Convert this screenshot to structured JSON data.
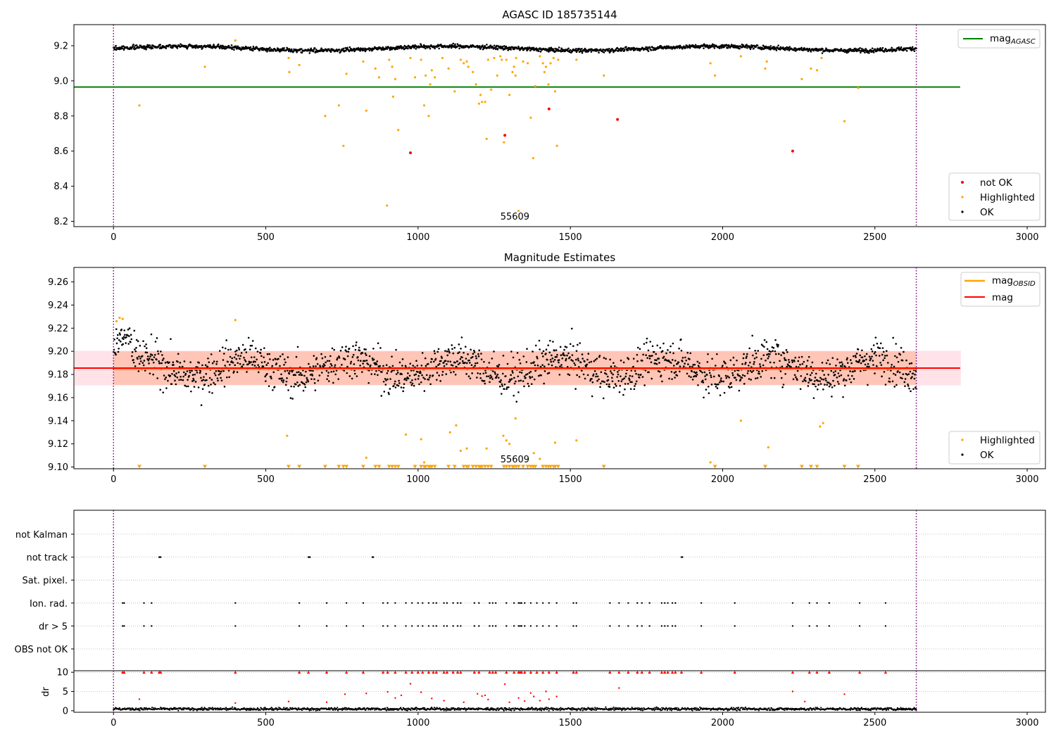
{
  "figure": {
    "colors": {
      "ok": "#000000",
      "highlighted": "#ffa500",
      "not_ok": "#ff0000",
      "mag_agasc_line": "#008000",
      "mag_obsid_line": "#ffa500",
      "mag_line": "#ff0000",
      "obs_band": "#ffa07a",
      "mag_band": "#ffc0cb",
      "boundary": "#800080",
      "grid": "#b0b0b0"
    }
  },
  "chart_data": [
    {
      "type": "scatter",
      "title": "AGASC ID 185735144",
      "xlim": [
        -130,
        3060
      ],
      "ylim": [
        8.17,
        9.32
      ],
      "xticks": [
        "0",
        "500",
        "1000",
        "1500",
        "2000",
        "2500",
        "3000"
      ],
      "yticks": [
        "8.2",
        "8.4",
        "8.6",
        "8.8",
        "9.0",
        "9.2"
      ],
      "obs_boundaries": [
        0,
        2636
      ],
      "obsid_annotation": {
        "text": "55609",
        "x": 1318
      },
      "reference_line": {
        "name": "mag_AGASC",
        "y": 8.965,
        "x_range": [
          -130,
          2780
        ]
      },
      "ok_series": {
        "name": "OK",
        "x_range": [
          0,
          2636
        ],
        "count": 1700,
        "mean": 9.185,
        "band": 0.025
      },
      "highlighted": {
        "name": "Highlighted",
        "points": [
          [
            85,
            8.86
          ],
          [
            300,
            9.08
          ],
          [
            400,
            9.23
          ],
          [
            575,
            9.13
          ],
          [
            577,
            9.05
          ],
          [
            610,
            9.09
          ],
          [
            695,
            8.8
          ],
          [
            740,
            8.86
          ],
          [
            755,
            8.63
          ],
          [
            765,
            9.04
          ],
          [
            820,
            9.11
          ],
          [
            830,
            8.83
          ],
          [
            860,
            9.07
          ],
          [
            872,
            9.02
          ],
          [
            898,
            8.29
          ],
          [
            905,
            9.12
          ],
          [
            915,
            9.08
          ],
          [
            918,
            8.91
          ],
          [
            925,
            9.01
          ],
          [
            935,
            8.72
          ],
          [
            975,
            9.13
          ],
          [
            990,
            9.02
          ],
          [
            1010,
            9.12
          ],
          [
            1020,
            8.86
          ],
          [
            1025,
            9.03
          ],
          [
            1035,
            8.8
          ],
          [
            1040,
            8.98
          ],
          [
            1045,
            9.06
          ],
          [
            1055,
            9.02
          ],
          [
            1080,
            9.13
          ],
          [
            1100,
            9.07
          ],
          [
            1120,
            8.94
          ],
          [
            1140,
            9.12
          ],
          [
            1150,
            9.1
          ],
          [
            1160,
            9.11
          ],
          [
            1165,
            9.08
          ],
          [
            1180,
            9.05
          ],
          [
            1190,
            8.98
          ],
          [
            1200,
            8.87
          ],
          [
            1205,
            8.92
          ],
          [
            1210,
            8.88
          ],
          [
            1220,
            8.88
          ],
          [
            1225,
            8.67
          ],
          [
            1230,
            9.12
          ],
          [
            1240,
            8.95
          ],
          [
            1250,
            9.13
          ],
          [
            1260,
            9.03
          ],
          [
            1270,
            9.14
          ],
          [
            1275,
            9.12
          ],
          [
            1282,
            8.65
          ],
          [
            1290,
            9.12
          ],
          [
            1300,
            8.92
          ],
          [
            1310,
            9.05
          ],
          [
            1315,
            9.08
          ],
          [
            1320,
            9.03
          ],
          [
            1322,
            9.13
          ],
          [
            1330,
            8.26
          ],
          [
            1345,
            9.11
          ],
          [
            1360,
            9.1
          ],
          [
            1370,
            8.79
          ],
          [
            1378,
            8.56
          ],
          [
            1385,
            8.97
          ],
          [
            1400,
            9.14
          ],
          [
            1410,
            9.1
          ],
          [
            1415,
            9.05
          ],
          [
            1420,
            9.08
          ],
          [
            1428,
            8.98
          ],
          [
            1435,
            9.1
          ],
          [
            1445,
            9.13
          ],
          [
            1450,
            8.94
          ],
          [
            1456,
            8.63
          ],
          [
            1460,
            9.12
          ],
          [
            1520,
            9.12
          ],
          [
            1610,
            9.03
          ],
          [
            1960,
            9.1
          ],
          [
            1975,
            9.03
          ],
          [
            2060,
            9.14
          ],
          [
            2140,
            9.07
          ],
          [
            2145,
            9.11
          ],
          [
            2260,
            9.01
          ],
          [
            2290,
            9.07
          ],
          [
            2310,
            9.06
          ],
          [
            2325,
            9.13
          ],
          [
            2400,
            8.77
          ],
          [
            2445,
            8.96
          ]
        ]
      },
      "not_ok": {
        "name": "not OK",
        "points": [
          [
            975,
            8.59
          ],
          [
            1285,
            8.69
          ],
          [
            1430,
            8.84
          ],
          [
            1655,
            8.78
          ],
          [
            2230,
            8.6
          ]
        ]
      },
      "legend_upper": {
        "entries": [
          "mag_AGASC"
        ],
        "position": "upper right"
      },
      "legend_lower": {
        "entries": [
          "not OK",
          "Highlighted",
          "OK"
        ],
        "position": "lower right"
      }
    },
    {
      "type": "scatter",
      "title": "Magnitude Estimates",
      "xlim": [
        -130,
        3060
      ],
      "ylim": [
        9.0985,
        9.2725
      ],
      "xticks": [
        "0",
        "500",
        "1000",
        "1500",
        "2000",
        "2500",
        "3000"
      ],
      "yticks": [
        "9.10",
        "9.12",
        "9.14",
        "9.16",
        "9.18",
        "9.20",
        "9.22",
        "9.24",
        "9.26"
      ],
      "obs_boundaries": [
        0,
        2636
      ],
      "obsid_annotation": {
        "text": "55609",
        "x": 1318
      },
      "mag_obsid": {
        "name": "mag_OBSID",
        "y": 9.1845,
        "band": [
          9.171,
          9.2
        ],
        "x_range": [
          0,
          2636
        ]
      },
      "mag": {
        "name": "mag",
        "y": 9.1855,
        "band": [
          9.1705,
          9.2005
        ],
        "x_range": [
          -130,
          2780
        ]
      },
      "ok_series": {
        "name": "OK",
        "x_range": [
          0,
          2636
        ],
        "count": 1700,
        "mean": 9.186,
        "scatter_sd": 0.012
      },
      "highlighted": {
        "name": "Highlighted",
        "points": [
          [
            20,
            9.229
          ],
          [
            30,
            9.228
          ],
          [
            10,
            9.226
          ],
          [
            400,
            9.227
          ],
          [
            570,
            9.127
          ],
          [
            830,
            9.108
          ],
          [
            960,
            9.128
          ],
          [
            1010,
            9.124
          ],
          [
            1020,
            9.104
          ],
          [
            1105,
            9.13
          ],
          [
            1125,
            9.136
          ],
          [
            1140,
            9.114
          ],
          [
            1160,
            9.116
          ],
          [
            1225,
            9.116
          ],
          [
            1280,
            9.127
          ],
          [
            1290,
            9.123
          ],
          [
            1300,
            9.12
          ],
          [
            1320,
            9.142
          ],
          [
            1380,
            9.112
          ],
          [
            1400,
            9.107
          ],
          [
            1450,
            9.121
          ],
          [
            1520,
            9.123
          ],
          [
            1960,
            9.104
          ],
          [
            2060,
            9.14
          ],
          [
            2150,
            9.117
          ],
          [
            2320,
            9.135
          ],
          [
            2330,
            9.138
          ]
        ],
        "below_axis_x": [
          85,
          300,
          575,
          610,
          695,
          740,
          755,
          765,
          820,
          860,
          872,
          905,
          915,
          925,
          935,
          990,
          1010,
          1020,
          1025,
          1035,
          1040,
          1045,
          1055,
          1100,
          1120,
          1150,
          1160,
          1165,
          1180,
          1190,
          1200,
          1205,
          1210,
          1220,
          1230,
          1240,
          1282,
          1290,
          1300,
          1310,
          1315,
          1322,
          1330,
          1345,
          1360,
          1370,
          1378,
          1385,
          1410,
          1420,
          1428,
          1435,
          1445,
          1450,
          1460,
          1610,
          1975,
          2140,
          2260,
          2290,
          2310,
          2400,
          2445
        ]
      },
      "legend_upper": {
        "entries": [
          "mag_OBSID",
          "mag"
        ],
        "position": "upper right"
      },
      "legend_lower": {
        "entries": [
          "Highlighted",
          "OK"
        ],
        "position": "lower right"
      }
    },
    {
      "type": "scatter",
      "title": "",
      "xlim": [
        -130,
        3060
      ],
      "xticks": [
        "0",
        "500",
        "1000",
        "1500",
        "2000",
        "2500",
        "3000"
      ],
      "flag_labels": [
        "not Kalman",
        "not track",
        "Sat. pixel.",
        "Ion. rad.",
        "dr > 5",
        "OBS not OK"
      ],
      "obs_boundaries": [
        0,
        2636
      ],
      "flags": {
        "not track": [
          150,
          152,
          155,
          640,
          642,
          645,
          850,
          853,
          1865,
          1868
        ],
        "Ion. rad.": [
          30,
          35,
          100,
          125,
          400,
          610,
          700,
          765,
          820,
          885,
          900,
          925,
          960,
          980,
          1000,
          1015,
          1035,
          1050,
          1060,
          1085,
          1095,
          1115,
          1130,
          1140,
          1185,
          1200,
          1235,
          1245,
          1255,
          1290,
          1315,
          1330,
          1335,
          1340,
          1350,
          1370,
          1390,
          1410,
          1430,
          1455,
          1510,
          1520,
          1630,
          1660,
          1690,
          1720,
          1735,
          1760,
          1800,
          1810,
          1820,
          1835,
          1845,
          1930,
          2040,
          2230,
          2285,
          2310,
          2350,
          2450,
          2535
        ],
        "dr > 5": [
          30,
          35,
          100,
          125,
          400,
          610,
          700,
          765,
          820,
          885,
          900,
          925,
          960,
          980,
          1000,
          1015,
          1035,
          1050,
          1060,
          1085,
          1095,
          1115,
          1130,
          1140,
          1185,
          1200,
          1235,
          1245,
          1255,
          1290,
          1315,
          1330,
          1335,
          1340,
          1350,
          1370,
          1390,
          1410,
          1430,
          1455,
          1510,
          1520,
          1630,
          1660,
          1690,
          1720,
          1735,
          1760,
          1800,
          1810,
          1820,
          1835,
          1845,
          1930,
          2040,
          2230,
          2285,
          2310,
          2350,
          2450,
          2535
        ]
      }
    },
    {
      "type": "scatter",
      "title": "",
      "ylabel": "dr",
      "xlim": [
        -130,
        3060
      ],
      "ylim": [
        -0.4,
        10.4
      ],
      "xticks": [
        "0",
        "500",
        "1000",
        "1500",
        "2000",
        "2500",
        "3000"
      ],
      "yticks": [
        "0",
        "5",
        "10"
      ],
      "obs_boundaries": [
        0,
        2636
      ],
      "ok_series": {
        "name": "OK",
        "x_range": [
          0,
          2636
        ],
        "count": 1500,
        "typical": 0.45
      },
      "outliers": [
        [
          85,
          3
        ],
        [
          400,
          2
        ],
        [
          575,
          2.4
        ],
        [
          700,
          2.2
        ],
        [
          760,
          4.3
        ],
        [
          830,
          4.5
        ],
        [
          900,
          4.9
        ],
        [
          925,
          3.3
        ],
        [
          945,
          4
        ],
        [
          975,
          7
        ],
        [
          1010,
          4.8
        ],
        [
          1045,
          3.2
        ],
        [
          1085,
          2.6
        ],
        [
          1150,
          2.2
        ],
        [
          1195,
          4.4
        ],
        [
          1210,
          3.8
        ],
        [
          1220,
          4
        ],
        [
          1230,
          2.9
        ],
        [
          1285,
          6.9
        ],
        [
          1300,
          2.2
        ],
        [
          1330,
          3.3
        ],
        [
          1350,
          2.5
        ],
        [
          1370,
          4.6
        ],
        [
          1380,
          3.7
        ],
        [
          1400,
          2.6
        ],
        [
          1420,
          5
        ],
        [
          1430,
          3
        ],
        [
          1455,
          3.7
        ],
        [
          1660,
          5.9
        ],
        [
          2230,
          5
        ],
        [
          2270,
          2.4
        ],
        [
          2400,
          4.3
        ]
      ],
      "capped_x": [
        30,
        35,
        100,
        125,
        150,
        155,
        400,
        610,
        640,
        700,
        765,
        820,
        885,
        900,
        925,
        960,
        980,
        1000,
        1015,
        1035,
        1050,
        1060,
        1085,
        1095,
        1115,
        1130,
        1140,
        1185,
        1200,
        1235,
        1245,
        1255,
        1290,
        1315,
        1330,
        1335,
        1340,
        1350,
        1370,
        1390,
        1410,
        1430,
        1455,
        1510,
        1520,
        1630,
        1660,
        1690,
        1720,
        1735,
        1760,
        1800,
        1810,
        1820,
        1835,
        1845,
        1865,
        1930,
        2040,
        2230,
        2285,
        2310,
        2350,
        2450,
        2535
      ]
    }
  ]
}
